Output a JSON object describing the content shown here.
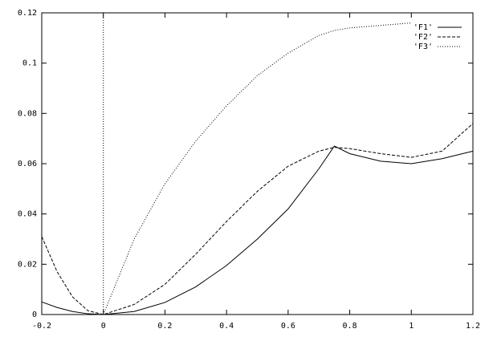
{
  "chart_data": {
    "type": "line",
    "x": [
      -0.2,
      -0.15,
      -0.1,
      -0.05,
      0,
      0.1,
      0.2,
      0.3,
      0.4,
      0.5,
      0.6,
      0.7,
      0.75,
      0.8,
      0.9,
      1.0,
      1.1,
      1.2
    ],
    "series": [
      {
        "name": "'F1'",
        "color": "#000000",
        "dash": "none",
        "values": [
          0.005,
          0.0028,
          0.0012,
          0.0003,
          0,
          0.0012,
          0.0048,
          0.011,
          0.0195,
          0.03,
          0.042,
          0.058,
          0.067,
          0.064,
          0.061,
          0.06,
          0.062,
          0.065
        ]
      },
      {
        "name": "'F2'",
        "color": "#000000",
        "dash": "4 2",
        "values": [
          0.031,
          0.017,
          0.007,
          0.0015,
          0,
          0.004,
          0.012,
          0.024,
          0.037,
          0.049,
          0.059,
          0.065,
          0.0665,
          0.066,
          0.064,
          0.0625,
          0.065,
          0.076
        ]
      },
      {
        "name": "'F3'",
        "color": "#000000",
        "dash": "1 2",
        "values": [
          null,
          null,
          null,
          null,
          0,
          0.03,
          0.052,
          0.069,
          0.083,
          0.095,
          0.104,
          0.111,
          0.113,
          0.114,
          0.115,
          0.116,
          null,
          null
        ]
      }
    ],
    "xlim": [
      -0.2,
      1.2
    ],
    "xticks": [
      -0.2,
      0,
      0.2,
      0.4,
      0.6,
      0.8,
      1,
      1.2
    ],
    "ylim": [
      0,
      0.12
    ],
    "yticks": [
      0,
      0.02,
      0.04,
      0.06,
      0.08,
      0.1,
      0.12
    ],
    "zeroaxis": true,
    "legend": "top-right"
  }
}
